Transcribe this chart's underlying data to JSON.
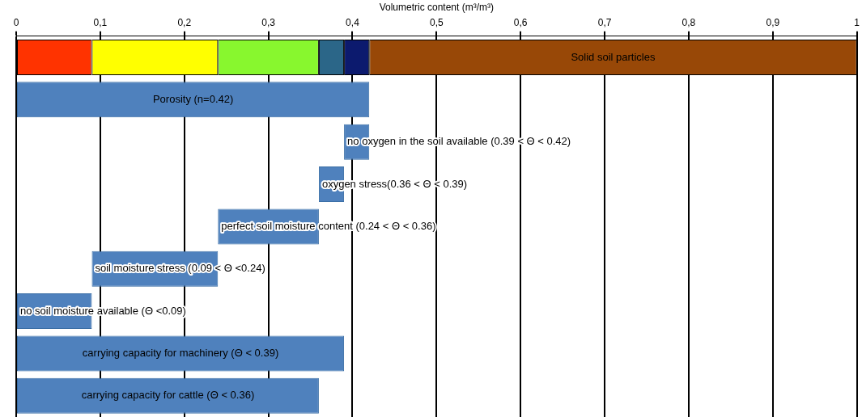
{
  "chart_data": {
    "type": "bar",
    "orientation": "horizontal",
    "xlabel": "Volumetric content (m³/m³)",
    "categories": [
      null,
      null,
      null,
      null,
      null,
      null,
      null,
      null,
      null
    ],
    "xlim": [
      0,
      1
    ],
    "xticks": [
      0,
      {
        "value": 0.1,
        "label": "0,1"
      },
      {
        "value": 0.2,
        "label": "0,2"
      },
      {
        "value": 0.3,
        "label": "0,3"
      },
      {
        "value": 0.4,
        "label": "0,4"
      },
      {
        "value": 0.5,
        "label": "0,5"
      },
      {
        "value": 0.6,
        "label": "0,6"
      },
      {
        "value": 0.7,
        "label": "0,7"
      },
      {
        "value": 0.8,
        "label": "0,8"
      },
      {
        "value": 0.9,
        "label": "0,9"
      },
      1
    ],
    "grid": "x",
    "legend": false,
    "tick_labels": "x",
    "series": [
      {
        "color": "#4f81bd",
        "base": [
          null,
          0,
          0.39,
          0.36,
          0.24,
          0.09,
          0,
          0,
          0
        ],
        "values": [
          null,
          0.42,
          0.03,
          0.03,
          0.12,
          0.15,
          0.09,
          0.39,
          0.36
        ],
        "value_labels": [
          null,
          "Porosity (n=0.42)",
          "no oxygen in the soil available (0.39 < Θ < 0.42)",
          "oxygen stress(0.36 < Θ < 0.39)",
          "perfect soil moisture content (0.24 < Θ < 0.36)",
          "soil moisture stress (0.09 < Θ <0.24)",
          "no soil moisture available (Θ <0.09)",
          "carrying capacity for machinery (Θ < 0.39)",
          "carrying capacity for cattle (Θ < 0.36)"
        ]
      },
      {
        "color": "#ff3300",
        "base": [
          0,
          null,
          null,
          null,
          null,
          null,
          null,
          null,
          null
        ],
        "values": [
          0.09,
          null,
          null,
          null,
          null,
          null,
          null,
          null,
          null
        ]
      },
      {
        "color": "#ffff00",
        "base": [
          0.09,
          null,
          null,
          null,
          null,
          null,
          null,
          null,
          null
        ],
        "values": [
          0.15,
          null,
          null,
          null,
          null,
          null,
          null,
          null,
          null
        ]
      },
      {
        "color": "#88f72e",
        "base": [
          0.24,
          null,
          null,
          null,
          null,
          null,
          null,
          null,
          null
        ],
        "values": [
          0.12,
          null,
          null,
          null,
          null,
          null,
          null,
          null,
          null
        ]
      },
      {
        "color": "#2b6688",
        "base": [
          0.36,
          null,
          null,
          null,
          null,
          null,
          null,
          null,
          null
        ],
        "values": [
          0.03,
          null,
          null,
          null,
          null,
          null,
          null,
          null,
          null
        ]
      },
      {
        "color": "#0c1a6e",
        "base": [
          0.39,
          null,
          null,
          null,
          null,
          null,
          null,
          null,
          null
        ],
        "values": [
          0.03,
          null,
          null,
          null,
          null,
          null,
          null,
          null,
          null
        ]
      },
      {
        "color": "#984807",
        "base": [
          0.42,
          null,
          null,
          null,
          null,
          null,
          null,
          null,
          null
        ],
        "values": [
          0.58,
          null,
          null,
          null,
          null,
          null,
          null,
          null,
          null
        ],
        "value_labels": [
          "Solid soil particles",
          null,
          null,
          null,
          null,
          null,
          null,
          null,
          null
        ]
      }
    ]
  }
}
